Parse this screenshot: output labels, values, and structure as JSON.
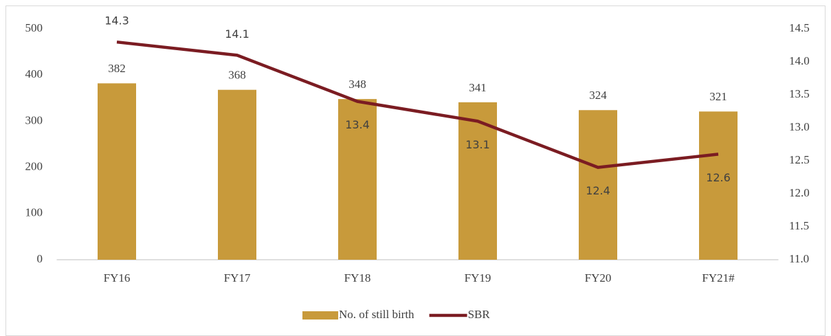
{
  "chart_data": {
    "type": "bar",
    "categories": [
      "FY16",
      "FY17",
      "FY18",
      "FY19",
      "FY20",
      "FY21#"
    ],
    "series": [
      {
        "name": "No. of still birth",
        "type": "bar",
        "color": "#c89a3b",
        "values": [
          382,
          368,
          348,
          341,
          324,
          321
        ]
      },
      {
        "name": "SBR",
        "type": "line",
        "axis": "y2",
        "color": "#7b1c22",
        "values": [
          14.3,
          14.1,
          13.4,
          13.1,
          12.4,
          12.6
        ]
      }
    ],
    "ylim": [
      0,
      500
    ],
    "yticks": [
      0,
      100,
      200,
      300,
      400,
      500
    ],
    "y2lim": [
      11.0,
      14.5
    ],
    "y2ticks": [
      {
        "value": 11,
        "label": "11.0"
      },
      {
        "value": 11.5,
        "label": "11.5"
      },
      {
        "value": 12,
        "label": "12.0"
      },
      {
        "value": 12.5,
        "label": "12.5"
      },
      {
        "value": 13,
        "label": "13.0"
      },
      {
        "value": 13.5,
        "label": "13.5"
      },
      {
        "value": 14,
        "label": "14.0"
      },
      {
        "value": 14.5,
        "label": "14.5"
      }
    ],
    "grid": false,
    "legend": "bottom"
  }
}
